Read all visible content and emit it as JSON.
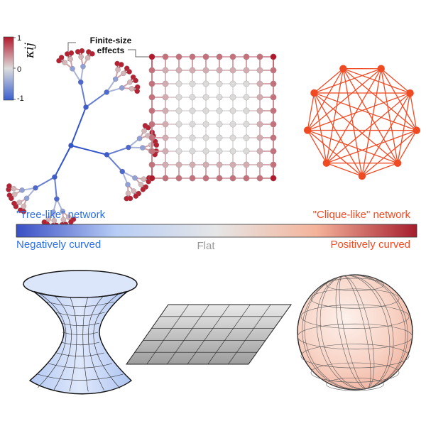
{
  "colorbar": {
    "max_label": "1",
    "mid_label": "0",
    "min_label": "-1",
    "symbol": "κij",
    "colors": {
      "negative": "#3a5fcd",
      "neutral": "#dddddd",
      "positive": "#b2182b"
    }
  },
  "annotation": {
    "finite_size": "Finite-size effects"
  },
  "networks": {
    "tree": {
      "kind": "tree",
      "curvature": "negative"
    },
    "lattice": {
      "kind": "lattice",
      "rows": 10,
      "cols": 10,
      "curvature": "flat with boundary effects"
    },
    "clique": {
      "kind": "complete graph",
      "nodes": 9,
      "curvature": "positive",
      "color": "#f04a23"
    }
  },
  "scale": {
    "left_label": "\"Tree-like\" network",
    "right_label": "\"Clique-like\" network",
    "negative_label": "Negatively curved",
    "flat_label": "Flat",
    "positive_label": "Positively curved",
    "gradient": [
      "#3a4fc4",
      "#b8cdf5",
      "#e6e6e6",
      "#f4b39a",
      "#a51d2d"
    ]
  },
  "surfaces": {
    "hyperboloid": {
      "shape": "hyperboloid",
      "color": "#b8cdf5"
    },
    "plane": {
      "shape": "plane",
      "color": "#b5b5b5"
    },
    "sphere": {
      "shape": "sphere",
      "color": "#f7c9b9"
    }
  }
}
